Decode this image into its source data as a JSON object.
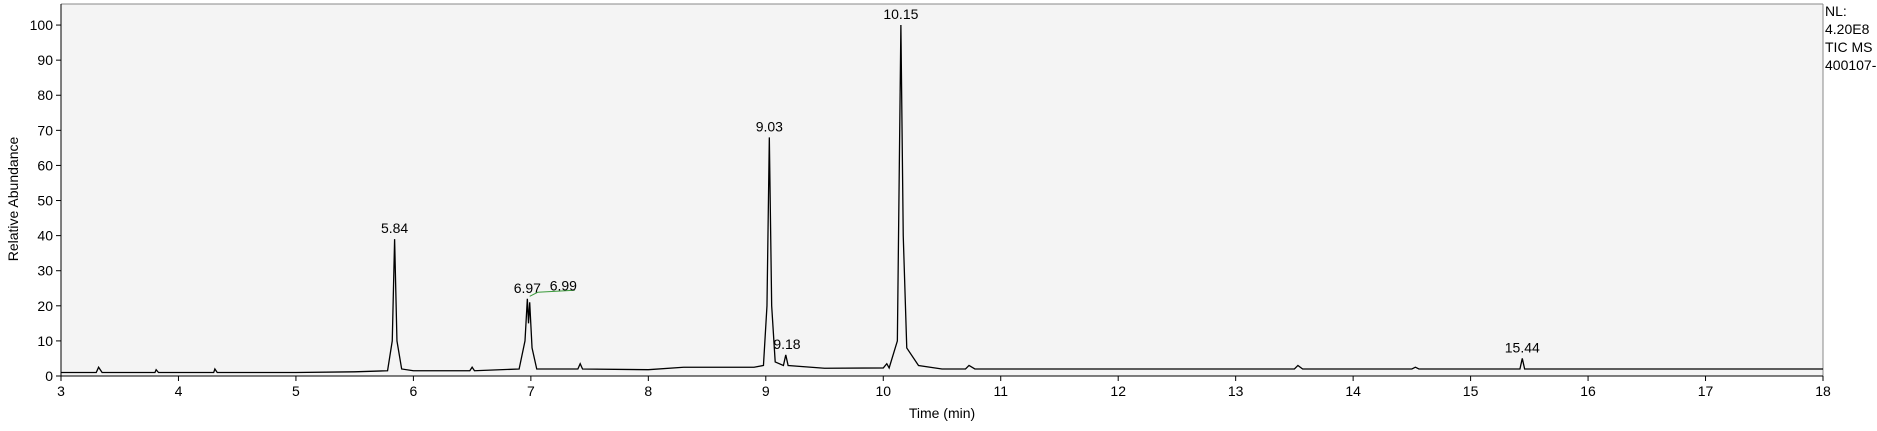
{
  "chart_data": {
    "type": "line",
    "x_label": "Time (min)",
    "y_label": "Relative Abundance",
    "info": [
      "NL:",
      "4.20E8",
      "TIC  MS",
      "400107-"
    ],
    "xlim": [
      3,
      18
    ],
    "xticks": [
      3,
      4,
      5,
      6,
      7,
      8,
      9,
      10,
      11,
      12,
      13,
      14,
      15,
      16,
      17,
      18
    ],
    "ylim": [
      0,
      106
    ],
    "yticks": [
      0,
      10,
      20,
      30,
      40,
      50,
      60,
      70,
      80,
      90,
      100
    ],
    "series": [
      {
        "color": "#000000",
        "x": [
          3.0,
          3.3,
          3.32,
          3.35,
          3.8,
          3.81,
          3.83,
          4.3,
          4.31,
          4.33,
          5.0,
          5.5,
          5.78,
          5.82,
          5.84,
          5.86,
          5.9,
          6.0,
          6.48,
          6.5,
          6.52,
          6.9,
          6.95,
          6.97,
          6.98,
          6.99,
          7.01,
          7.05,
          7.4,
          7.42,
          7.44,
          8.0,
          8.3,
          8.9,
          8.98,
          9.01,
          9.03,
          9.05,
          9.08,
          9.15,
          9.17,
          9.19,
          9.5,
          10.0,
          10.03,
          10.05,
          10.12,
          10.15,
          10.17,
          10.2,
          10.3,
          10.5,
          10.7,
          10.73,
          10.78,
          13.5,
          13.53,
          13.57,
          14.5,
          14.53,
          14.56,
          15.42,
          15.44,
          15.46,
          18.0
        ],
        "values": [
          1,
          1,
          2.5,
          1,
          1,
          1.8,
          1,
          1,
          2,
          1,
          1,
          1.2,
          1.5,
          10,
          39,
          10,
          2,
          1.5,
          1.5,
          2.5,
          1.5,
          2,
          10,
          22,
          15,
          21,
          8,
          2,
          2,
          3.5,
          2,
          1.8,
          2.5,
          2.5,
          3,
          20,
          68,
          20,
          4,
          3,
          6,
          3,
          2.2,
          2.3,
          3.5,
          2.3,
          10,
          100,
          40,
          8,
          3,
          2,
          2,
          3,
          2,
          2,
          3,
          2,
          2,
          2.5,
          2,
          2,
          5,
          2,
          2
        ]
      }
    ],
    "peaks": {
      "x": [
        5.84,
        6.97,
        6.99,
        9.03,
        9.18,
        10.15,
        15.44
      ],
      "y": [
        39,
        22,
        21,
        68,
        6,
        100,
        5
      ]
    }
  }
}
